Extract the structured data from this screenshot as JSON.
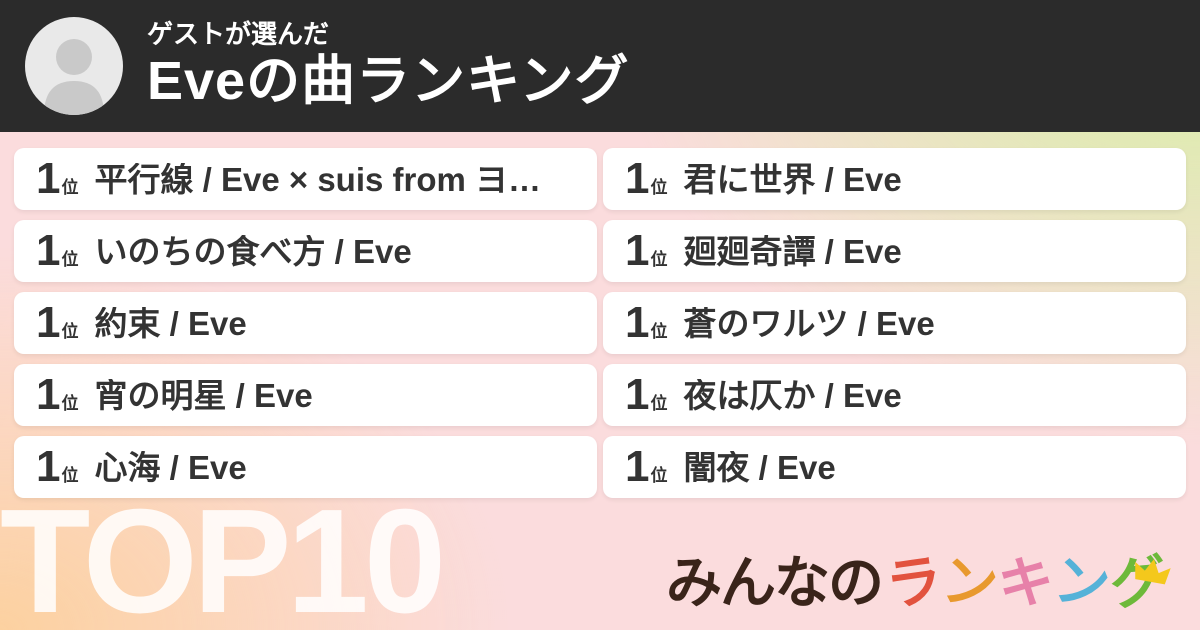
{
  "header": {
    "subtitle": "ゲストが選んだ",
    "title": "Eveの曲ランキング",
    "bg_color": "#2b2b2b",
    "avatar_icon": "person-icon"
  },
  "ranking": {
    "left_column": [
      {
        "rank": "1",
        "rank_suffix": "位",
        "title": "平行線 / Eve × suis from ヨ…"
      },
      {
        "rank": "1",
        "rank_suffix": "位",
        "title": "いのちの食べ方 / Eve"
      },
      {
        "rank": "1",
        "rank_suffix": "位",
        "title": "約束 / Eve"
      },
      {
        "rank": "1",
        "rank_suffix": "位",
        "title": "宵の明星 / Eve"
      },
      {
        "rank": "1",
        "rank_suffix": "位",
        "title": "心海 / Eve"
      }
    ],
    "right_column": [
      {
        "rank": "1",
        "rank_suffix": "位",
        "title": "君に世界 / Eve"
      },
      {
        "rank": "1",
        "rank_suffix": "位",
        "title": "廻廻奇譚 / Eve"
      },
      {
        "rank": "1",
        "rank_suffix": "位",
        "title": "蒼のワルツ / Eve"
      },
      {
        "rank": "1",
        "rank_suffix": "位",
        "title": "夜は仄か / Eve"
      },
      {
        "rank": "1",
        "rank_suffix": "位",
        "title": "闇夜 / Eve"
      }
    ]
  },
  "footer": {
    "badge": "TOP10",
    "logo": {
      "segments": [
        {
          "text": "みんなの",
          "color": "#3a241a"
        },
        {
          "text": "ラ",
          "color": "#e2523e"
        },
        {
          "text": "ン",
          "color": "#e8992e"
        },
        {
          "text": "キ",
          "color": "#e781a9"
        },
        {
          "text": "ン",
          "color": "#55b2d8"
        },
        {
          "text": "グ",
          "color": "#6db93a"
        }
      ],
      "crown_color": "#f4c81c"
    }
  },
  "colors": {
    "card_text": "#333333",
    "card_bg": "#ffffff",
    "bg_base_pink": "#fbdcdd",
    "bg_top_right_green": "#d5f0a2",
    "bg_bottom_left_orange": "#fcd1a0"
  }
}
